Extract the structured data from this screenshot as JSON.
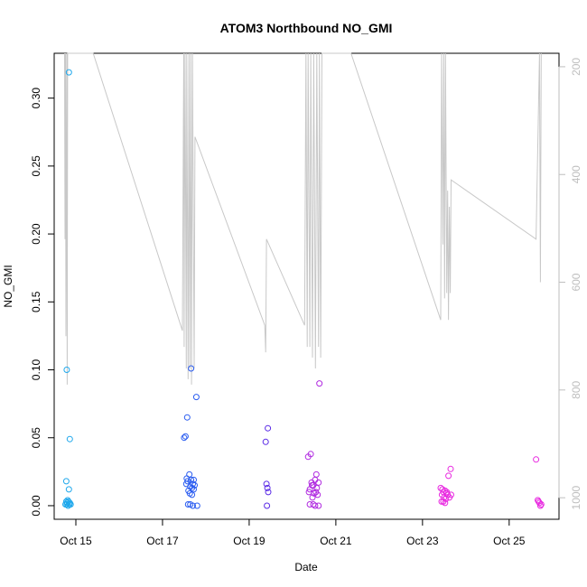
{
  "chart_data": {
    "type": "scatter",
    "title": "ATOM3 Northbound NO_GMI",
    "xlabel": "Date",
    "ylabel": "NO_GMI",
    "x_ticks": [
      "Oct 15",
      "Oct 17",
      "Oct 19",
      "Oct 21",
      "Oct 23",
      "Oct 25"
    ],
    "x_tick_days": [
      15,
      17,
      19,
      21,
      23,
      25
    ],
    "xlim": [
      14.5,
      26.15
    ],
    "ylim": [
      -0.01,
      0.333
    ],
    "y_ticks": [
      0.0,
      0.05,
      0.1,
      0.15,
      0.2,
      0.25,
      0.3
    ],
    "y_tick_labels": [
      "0.00",
      "0.05",
      "0.10",
      "0.15",
      "0.20",
      "0.25",
      "0.30"
    ],
    "y2_ticks": [
      200,
      400,
      600,
      800,
      1000
    ],
    "y2_tick_labels": [
      "200",
      "400",
      "600",
      "800",
      "1000"
    ],
    "y2lim": [
      1040,
      175
    ],
    "y2_reversed": true,
    "grid": false,
    "legend": "none",
    "colors": {
      "early": "#1fa8ec",
      "mid": "#2a5cf0",
      "mid2": "#5a2ae6",
      "late": "#b02ae0",
      "end": "#e829e0",
      "altitude_line": "#c8c8c8"
    },
    "series": [
      {
        "color_key": "early",
        "points": [
          [
            14.76,
            0.001
          ],
          [
            14.78,
            0.003
          ],
          [
            14.79,
            0.001
          ],
          [
            14.8,
            0.002
          ],
          [
            14.81,
            0.004
          ],
          [
            14.82,
            0.0
          ],
          [
            14.83,
            0.003
          ],
          [
            14.85,
            0.001
          ],
          [
            14.86,
            0.002
          ],
          [
            14.78,
            0.018
          ],
          [
            14.84,
            0.012
          ],
          [
            14.86,
            0.049
          ],
          [
            14.79,
            0.1
          ],
          [
            14.84,
            0.319
          ],
          [
            14.88,
            0.001
          ]
        ]
      },
      {
        "color_key": "mid",
        "points": [
          [
            17.5,
            0.05
          ],
          [
            17.53,
            0.051
          ],
          [
            17.57,
            0.065
          ],
          [
            17.66,
            0.101
          ],
          [
            17.78,
            0.08
          ],
          [
            17.55,
            0.016
          ],
          [
            17.58,
            0.018
          ],
          [
            17.62,
            0.023
          ],
          [
            17.64,
            0.014
          ],
          [
            17.66,
            0.019
          ],
          [
            17.7,
            0.016
          ],
          [
            17.72,
            0.019
          ],
          [
            17.6,
            0.011
          ],
          [
            17.63,
            0.009
          ],
          [
            17.68,
            0.008
          ],
          [
            17.72,
            0.012
          ],
          [
            17.74,
            0.015
          ],
          [
            17.59,
            0.001
          ],
          [
            17.64,
            0.001
          ],
          [
            17.7,
            0.0
          ],
          [
            17.8,
            0.0
          ],
          [
            17.56,
            0.02
          ],
          [
            17.68,
            0.013
          ]
        ]
      },
      {
        "color_key": "mid2",
        "points": [
          [
            19.38,
            0.047
          ],
          [
            19.43,
            0.057
          ],
          [
            19.4,
            0.016
          ],
          [
            19.42,
            0.013
          ],
          [
            19.44,
            0.01
          ],
          [
            19.41,
            0.0
          ]
        ]
      },
      {
        "color_key": "late",
        "points": [
          [
            20.36,
            0.036
          ],
          [
            20.42,
            0.038
          ],
          [
            20.55,
            0.023
          ],
          [
            20.62,
            0.09
          ],
          [
            20.4,
            0.012
          ],
          [
            20.44,
            0.017
          ],
          [
            20.48,
            0.015
          ],
          [
            20.52,
            0.019
          ],
          [
            20.56,
            0.013
          ],
          [
            20.6,
            0.017
          ],
          [
            20.38,
            0.01
          ],
          [
            20.46,
            0.006
          ],
          [
            20.5,
            0.009
          ],
          [
            20.54,
            0.01
          ],
          [
            20.58,
            0.008
          ],
          [
            20.4,
            0.001
          ],
          [
            20.48,
            0.001
          ],
          [
            20.52,
            0.0
          ],
          [
            20.6,
            0.0
          ],
          [
            20.45,
            0.015
          ]
        ]
      },
      {
        "color_key": "end",
        "points": [
          [
            23.42,
            0.013
          ],
          [
            23.45,
            0.008
          ],
          [
            23.48,
            0.01
          ],
          [
            23.52,
            0.011
          ],
          [
            23.55,
            0.009
          ],
          [
            23.58,
            0.008
          ],
          [
            23.62,
            0.006
          ],
          [
            23.66,
            0.008
          ],
          [
            23.5,
            0.006
          ],
          [
            23.54,
            0.005
          ],
          [
            23.44,
            0.003
          ],
          [
            23.48,
            0.003
          ],
          [
            23.52,
            0.002
          ],
          [
            23.6,
            0.022
          ],
          [
            23.65,
            0.027
          ],
          [
            23.46,
            0.012
          ],
          [
            23.56,
            0.01
          ],
          [
            25.62,
            0.034
          ],
          [
            25.66,
            0.004
          ],
          [
            25.7,
            0.002
          ],
          [
            25.72,
            0.0
          ],
          [
            25.74,
            0.001
          ],
          [
            25.68,
            0.003
          ]
        ]
      }
    ],
    "altitude_line": {
      "axis": "y2",
      "points": [
        [
          14.74,
          175
        ],
        [
          14.75,
          520
        ],
        [
          14.76,
          175
        ],
        [
          14.77,
          700
        ],
        [
          14.79,
          175
        ],
        [
          14.8,
          790
        ],
        [
          14.81,
          175
        ],
        [
          14.83,
          175
        ],
        [
          14.84,
          175
        ],
        [
          15.4,
          175
        ],
        [
          17.46,
          690
        ],
        [
          17.48,
          330
        ],
        [
          17.49,
          175
        ],
        [
          17.5,
          720
        ],
        [
          17.52,
          175
        ],
        [
          17.55,
          760
        ],
        [
          17.56,
          175
        ],
        [
          17.59,
          780
        ],
        [
          17.61,
          175
        ],
        [
          17.63,
          760
        ],
        [
          17.65,
          175
        ],
        [
          17.67,
          790
        ],
        [
          17.69,
          175
        ],
        [
          17.73,
          760
        ],
        [
          17.75,
          330
        ],
        [
          19.36,
          680
        ],
        [
          19.38,
          730
        ],
        [
          19.4,
          520
        ],
        [
          20.28,
          680
        ],
        [
          20.31,
          175
        ],
        [
          20.34,
          720
        ],
        [
          20.36,
          175
        ],
        [
          20.4,
          720
        ],
        [
          20.42,
          175
        ],
        [
          20.46,
          740
        ],
        [
          20.49,
          175
        ],
        [
          20.53,
          760
        ],
        [
          20.56,
          175
        ],
        [
          20.6,
          720
        ],
        [
          20.62,
          175
        ],
        [
          20.65,
          740
        ],
        [
          20.68,
          175
        ],
        [
          21.35,
          175
        ],
        [
          23.42,
          670
        ],
        [
          23.44,
          175
        ],
        [
          23.47,
          530
        ],
        [
          23.49,
          175
        ],
        [
          23.51,
          630
        ],
        [
          23.53,
          175
        ],
        [
          23.56,
          620
        ],
        [
          23.58,
          430
        ],
        [
          23.6,
          670
        ],
        [
          23.62,
          460
        ],
        [
          23.64,
          620
        ],
        [
          23.66,
          410
        ],
        [
          25.62,
          520
        ],
        [
          25.7,
          175
        ],
        [
          25.72,
          600
        ],
        [
          25.74,
          175
        ]
      ]
    }
  }
}
